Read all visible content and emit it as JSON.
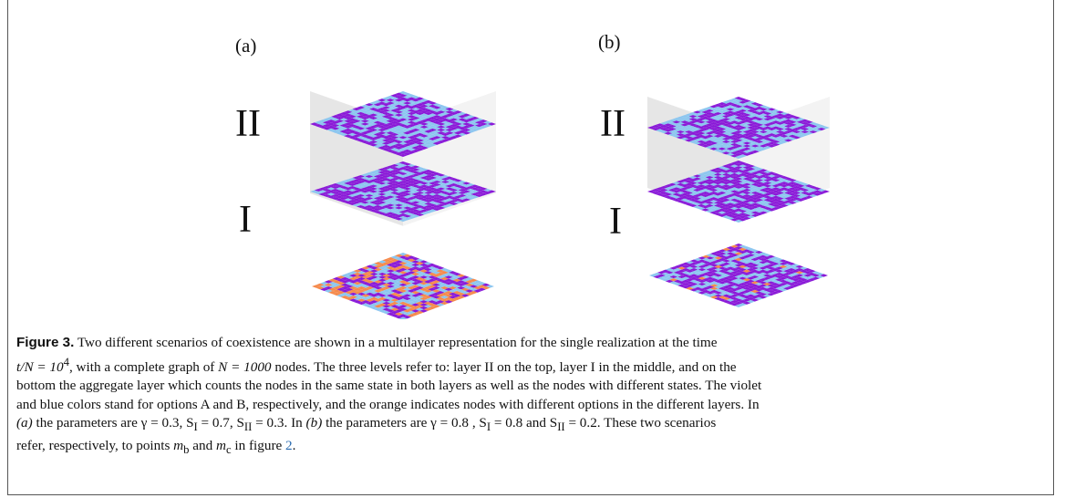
{
  "figure": {
    "panels": [
      {
        "label": "(a)",
        "layer_top": "II",
        "layer_mid": "I"
      },
      {
        "label": "(b)",
        "layer_top": "II",
        "layer_mid": "I"
      }
    ],
    "colors": {
      "violet": "#8a1ad8",
      "blue": "#8cc6f0",
      "orange": "#f58a4c",
      "box_left": "#e6e6e6",
      "box_right": "#f3f3f3"
    }
  },
  "caption": {
    "label": "Figure 3.",
    "p1": " Two different scenarios of coexistence are shown in a multilayer representation for the single realization at the time",
    "p2a": "t/N = 10",
    "p2exp": "4",
    "p2b": ", with a complete graph of ",
    "p2c": "N = 1000",
    "p2d": " nodes. The three levels refer to: layer II on the top, layer I in the middle, and on the",
    "p3": "bottom the aggregate layer which counts the nodes in the same state in both layers as well as the nodes with different states. The violet",
    "p4": "and blue colors stand for options A and B, respectively, and the orange indicates nodes with different options in the different layers. In",
    "p5a": "(a)",
    "p5b": " the parameters are γ = 0.3, S",
    "p5c": "I",
    "p5d": " = 0.7, S",
    "p5e": "II",
    "p5f": " = 0.3. In ",
    "p5g": "(b)",
    "p5h": " the parameters are γ = 0.8 , S",
    "p5i": "I",
    "p5j": " = 0.8 and S",
    "p5k": "II",
    "p5l": " = 0.2. These two scenarios",
    "p6a": "refer, respectively, to points ",
    "p6b": "m",
    "p6c": "b",
    "p6d": " and ",
    "p6e": "m",
    "p6f": "c",
    "p6g": " in figure ",
    "p6h": "2",
    "p6i": "."
  }
}
